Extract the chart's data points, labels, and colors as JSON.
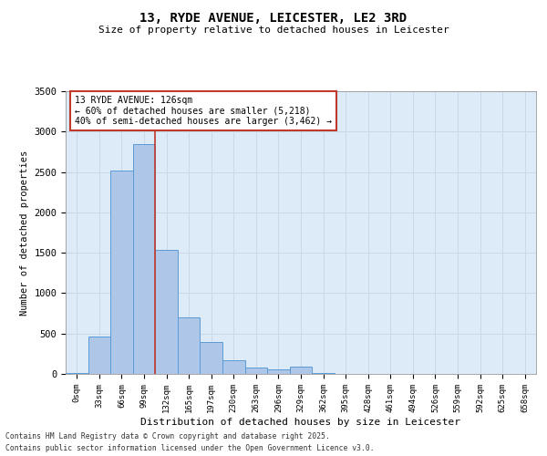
{
  "title1": "13, RYDE AVENUE, LEICESTER, LE2 3RD",
  "title2": "Size of property relative to detached houses in Leicester",
  "xlabel": "Distribution of detached houses by size in Leicester",
  "ylabel": "Number of detached properties",
  "bar_labels": [
    "0sqm",
    "33sqm",
    "66sqm",
    "99sqm",
    "132sqm",
    "165sqm",
    "197sqm",
    "230sqm",
    "263sqm",
    "296sqm",
    "329sqm",
    "362sqm",
    "395sqm",
    "428sqm",
    "461sqm",
    "494sqm",
    "526sqm",
    "559sqm",
    "592sqm",
    "625sqm",
    "658sqm"
  ],
  "bar_values": [
    15,
    460,
    2520,
    2850,
    1540,
    700,
    390,
    165,
    80,
    55,
    95,
    10,
    5,
    5,
    5,
    5,
    2,
    2,
    2,
    2,
    2
  ],
  "bar_color": "#aec6e8",
  "bar_edge_color": "#5b9bd5",
  "vline_pos": 4.0,
  "vline_color": "#c0392b",
  "ylim": [
    0,
    3500
  ],
  "yticks": [
    0,
    500,
    1000,
    1500,
    2000,
    2500,
    3000,
    3500
  ],
  "annotation_title": "13 RYDE AVENUE: 126sqm",
  "annotation_line1": "← 60% of detached houses are smaller (5,218)",
  "annotation_line2": "40% of semi-detached houses are larger (3,462) →",
  "annotation_box_color": "#c0392b",
  "grid_color": "#c8d8e8",
  "background_color": "#ddeaf7",
  "footer1": "Contains HM Land Registry data © Crown copyright and database right 2025.",
  "footer2": "Contains public sector information licensed under the Open Government Licence v3.0."
}
